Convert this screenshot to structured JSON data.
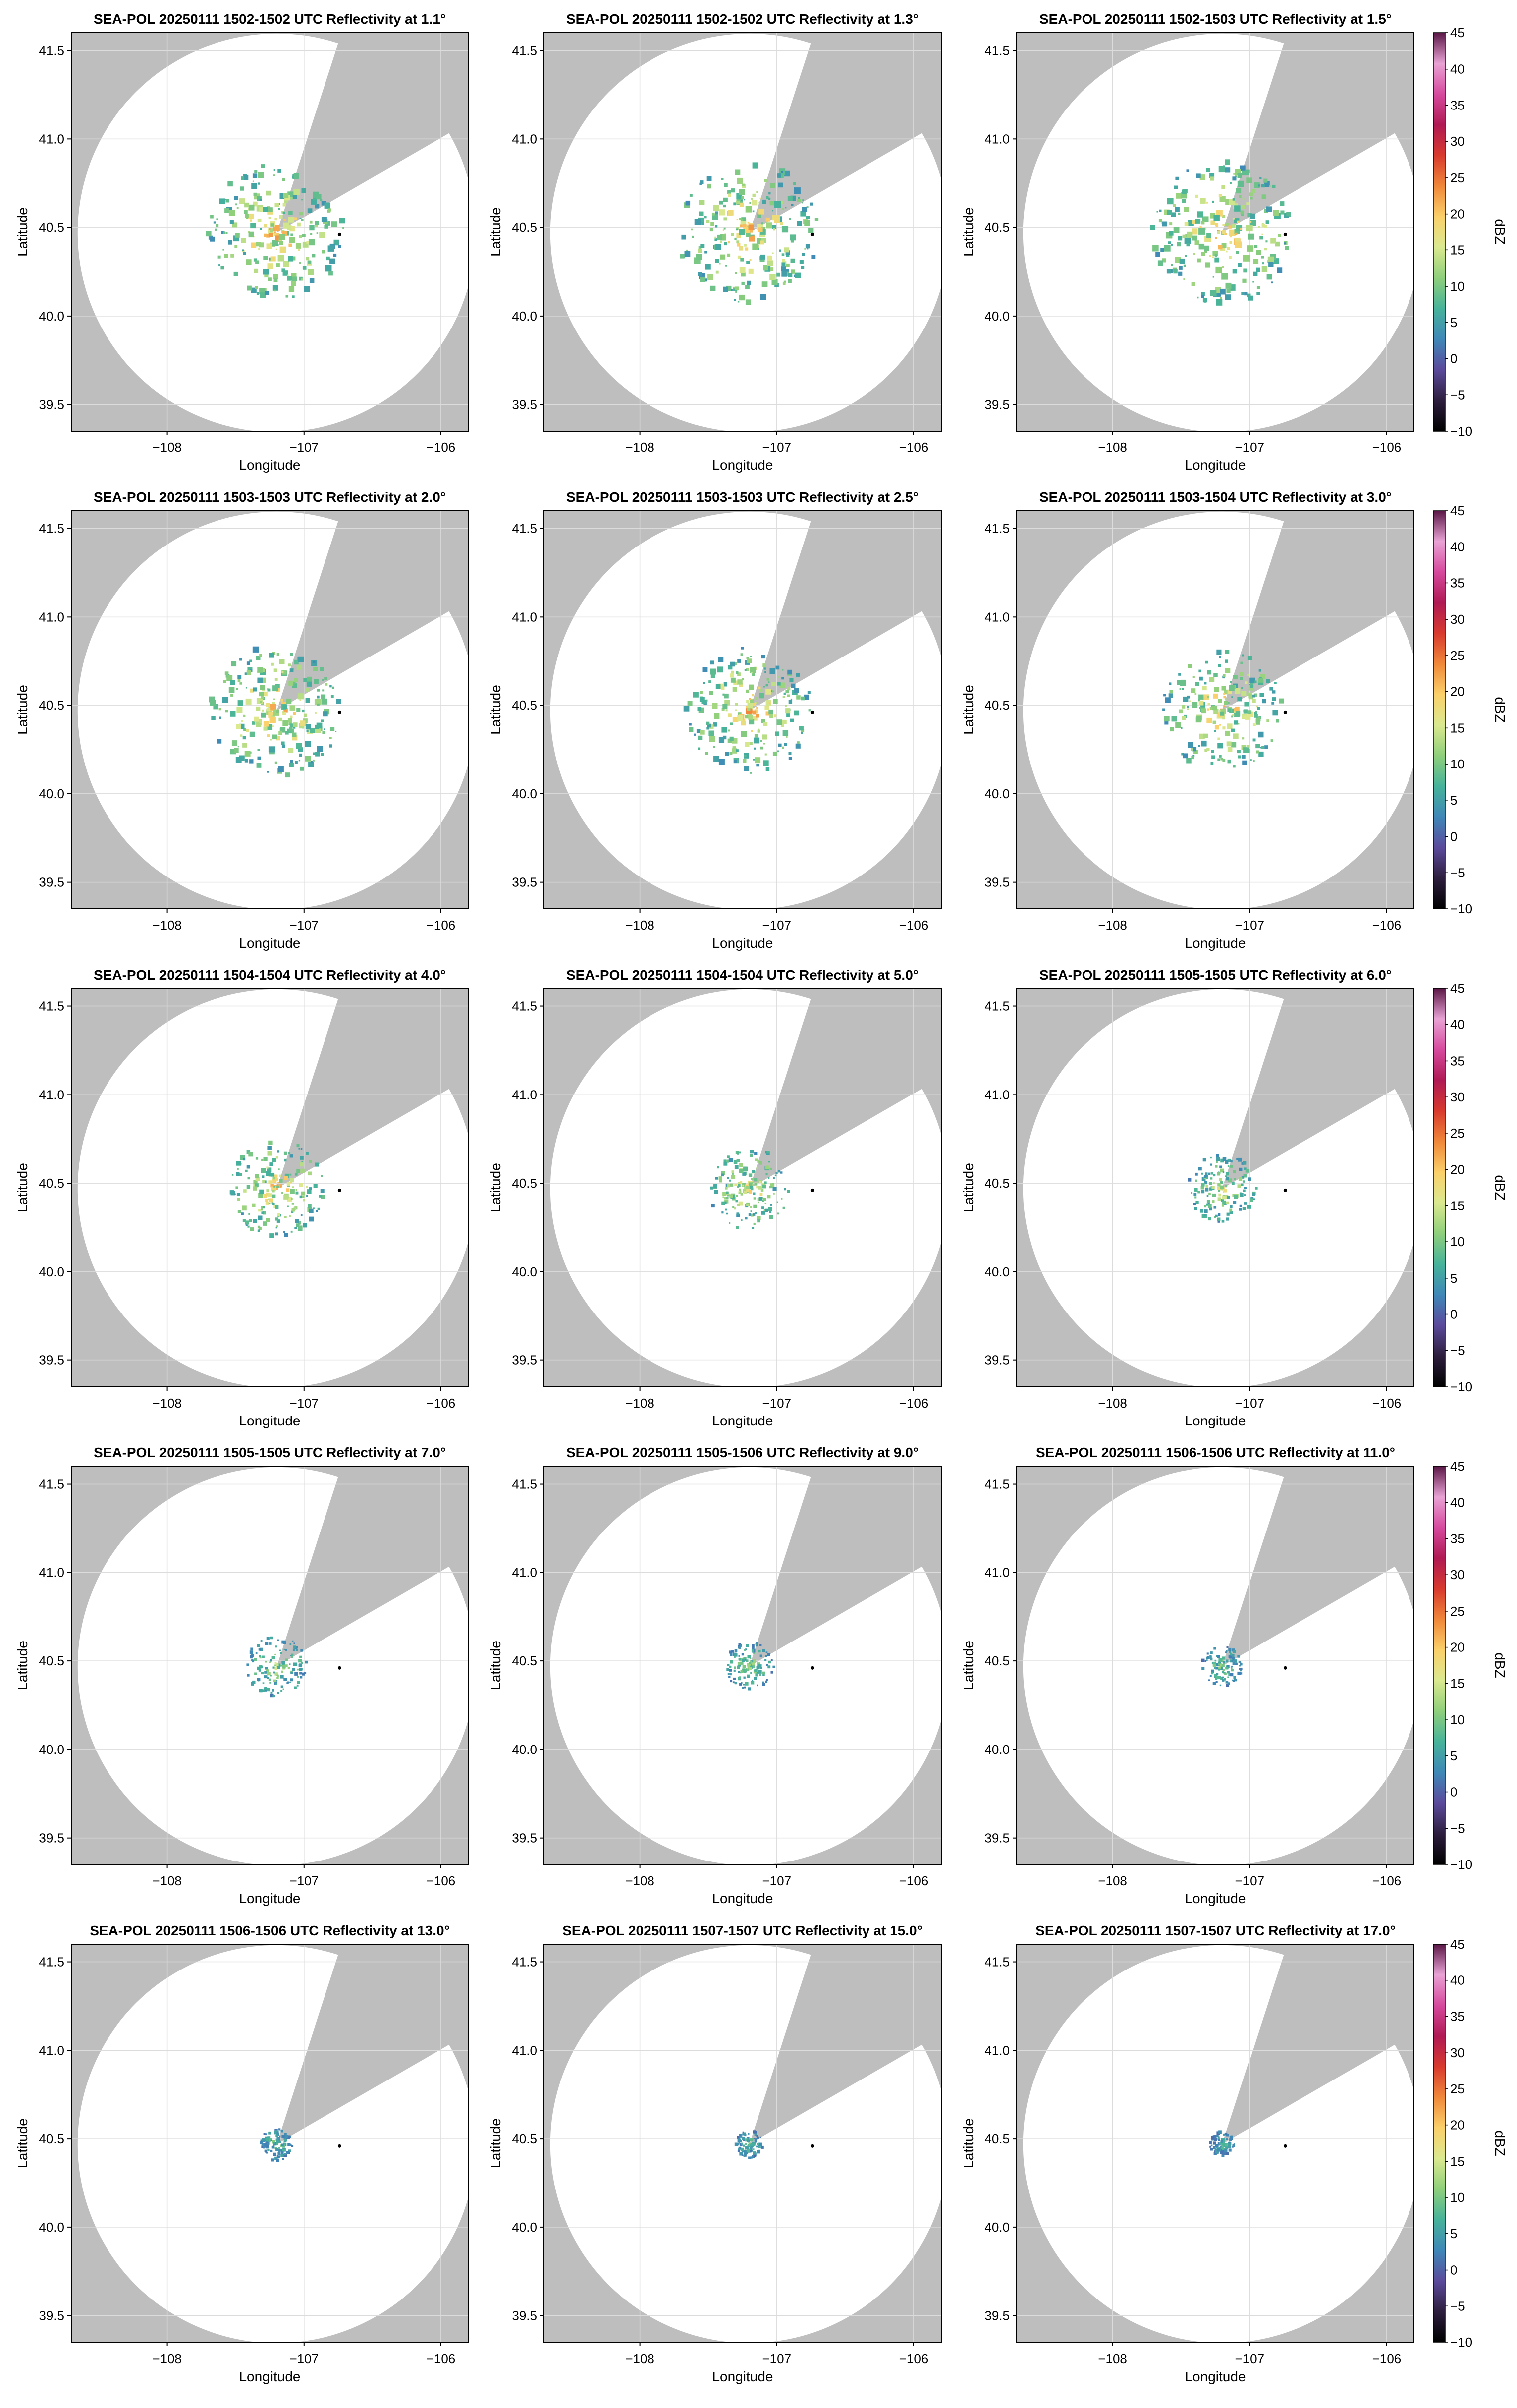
{
  "figure": {
    "xlabel": "Longitude",
    "ylabel": "Latitude",
    "xticks": [
      "−108",
      "−107",
      "−106"
    ],
    "yticks": [
      "39.5",
      "40.0",
      "40.5",
      "41.0",
      "41.5"
    ],
    "colorbar_label": "dBZ",
    "colorbar_ticks": [
      "45",
      "40",
      "35",
      "30",
      "25",
      "20",
      "15",
      "10",
      "5",
      "0",
      "−5",
      "−10"
    ],
    "colors": {
      "background_gray": "#bebebe",
      "coverage_white": "#ffffff",
      "grid": "#dcdcdc",
      "colormap": [
        "#000000",
        "#2d1e3e",
        "#5b4a9c",
        "#3f88b8",
        "#47b39a",
        "#8fcf7b",
        "#dbe98f",
        "#fbd06a",
        "#f0883a",
        "#d83a2e",
        "#b01a54",
        "#d64a9e",
        "#e9a2d4",
        "#5a1746"
      ]
    }
  },
  "chart_data": [
    {
      "type": "heatmap",
      "title": "SEA-POL 20250111 1502-1502 UTC Reflectivity at 1.1°",
      "elevation_deg": 1.1,
      "xlim": [
        -108.7,
        -105.8
      ],
      "ylim": [
        39.35,
        41.6
      ],
      "radar_lon": -107.2,
      "radar_lat": 40.47,
      "marker": {
        "lon": -106.74,
        "lat": 40.46
      },
      "echo_extent_deg": 0.5,
      "echo_max_dbz": 28
    },
    {
      "type": "heatmap",
      "title": "SEA-POL 20250111 1502-1502 UTC Reflectivity at 1.3°",
      "elevation_deg": 1.3,
      "xlim": [
        -108.7,
        -105.8
      ],
      "ylim": [
        39.35,
        41.6
      ],
      "radar_lon": -107.2,
      "radar_lat": 40.47,
      "marker": {
        "lon": -106.74,
        "lat": 40.46
      },
      "echo_extent_deg": 0.52,
      "echo_max_dbz": 28
    },
    {
      "type": "heatmap",
      "title": "SEA-POL 20250111 1502-1503 UTC Reflectivity at 1.5°",
      "elevation_deg": 1.5,
      "xlim": [
        -108.7,
        -105.8
      ],
      "ylim": [
        39.35,
        41.6
      ],
      "radar_lon": -107.2,
      "radar_lat": 40.47,
      "marker": {
        "lon": -106.74,
        "lat": 40.46
      },
      "echo_extent_deg": 0.52,
      "echo_max_dbz": 28,
      "colorbar": true
    },
    {
      "type": "heatmap",
      "title": "SEA-POL 20250111 1503-1503 UTC Reflectivity at 2.0°",
      "elevation_deg": 2.0,
      "xlim": [
        -108.7,
        -105.8
      ],
      "ylim": [
        39.35,
        41.6
      ],
      "radar_lon": -107.2,
      "radar_lat": 40.47,
      "marker": {
        "lon": -106.74,
        "lat": 40.46
      },
      "echo_extent_deg": 0.48,
      "echo_max_dbz": 28
    },
    {
      "type": "heatmap",
      "title": "SEA-POL 20250111 1503-1503 UTC Reflectivity at 2.5°",
      "elevation_deg": 2.5,
      "xlim": [
        -108.7,
        -105.8
      ],
      "ylim": [
        39.35,
        41.6
      ],
      "radar_lon": -107.2,
      "radar_lat": 40.47,
      "marker": {
        "lon": -106.74,
        "lat": 40.46
      },
      "echo_extent_deg": 0.46,
      "echo_max_dbz": 28
    },
    {
      "type": "heatmap",
      "title": "SEA-POL 20250111 1503-1504 UTC Reflectivity at 3.0°",
      "elevation_deg": 3.0,
      "xlim": [
        -108.7,
        -105.8
      ],
      "ylim": [
        39.35,
        41.6
      ],
      "radar_lon": -107.2,
      "radar_lat": 40.47,
      "marker": {
        "lon": -106.74,
        "lat": 40.46
      },
      "echo_extent_deg": 0.44,
      "echo_max_dbz": 28,
      "colorbar": true
    },
    {
      "type": "heatmap",
      "title": "SEA-POL 20250111 1504-1504 UTC Reflectivity at 4.0°",
      "elevation_deg": 4.0,
      "xlim": [
        -108.7,
        -105.8
      ],
      "ylim": [
        39.35,
        41.6
      ],
      "radar_lon": -107.2,
      "radar_lat": 40.47,
      "marker": {
        "lon": -106.74,
        "lat": 40.46
      },
      "echo_extent_deg": 0.35,
      "echo_max_dbz": 28
    },
    {
      "type": "heatmap",
      "title": "SEA-POL 20250111 1504-1504 UTC Reflectivity at 5.0°",
      "elevation_deg": 5.0,
      "xlim": [
        -108.7,
        -105.8
      ],
      "ylim": [
        39.35,
        41.6
      ],
      "radar_lon": -107.2,
      "radar_lat": 40.47,
      "marker": {
        "lon": -106.74,
        "lat": 40.46
      },
      "echo_extent_deg": 0.3,
      "echo_max_dbz": 25
    },
    {
      "type": "heatmap",
      "title": "SEA-POL 20250111 1505-1505 UTC Reflectivity at 6.0°",
      "elevation_deg": 6.0,
      "xlim": [
        -108.7,
        -105.8
      ],
      "ylim": [
        39.35,
        41.6
      ],
      "radar_lon": -107.2,
      "radar_lat": 40.47,
      "marker": {
        "lon": -106.74,
        "lat": 40.46
      },
      "echo_extent_deg": 0.25,
      "echo_max_dbz": 22,
      "colorbar": true
    },
    {
      "type": "heatmap",
      "title": "SEA-POL 20250111 1505-1505 UTC Reflectivity at 7.0°",
      "elevation_deg": 7.0,
      "xlim": [
        -108.7,
        -105.8
      ],
      "ylim": [
        39.35,
        41.6
      ],
      "radar_lon": -107.2,
      "radar_lat": 40.47,
      "marker": {
        "lon": -106.74,
        "lat": 40.46
      },
      "echo_extent_deg": 0.22,
      "echo_max_dbz": 20
    },
    {
      "type": "heatmap",
      "title": "SEA-POL 20250111 1505-1506 UTC Reflectivity at 9.0°",
      "elevation_deg": 9.0,
      "xlim": [
        -108.7,
        -105.8
      ],
      "ylim": [
        39.35,
        41.6
      ],
      "radar_lon": -107.2,
      "radar_lat": 40.47,
      "marker": {
        "lon": -106.74,
        "lat": 40.46
      },
      "echo_extent_deg": 0.18,
      "echo_max_dbz": 18
    },
    {
      "type": "heatmap",
      "title": "SEA-POL 20250111 1506-1506 UTC Reflectivity at 11.0°",
      "elevation_deg": 11.0,
      "xlim": [
        -108.7,
        -105.8
      ],
      "ylim": [
        39.35,
        41.6
      ],
      "radar_lon": -107.2,
      "radar_lat": 40.47,
      "marker": {
        "lon": -106.74,
        "lat": 40.46
      },
      "echo_extent_deg": 0.15,
      "echo_max_dbz": 16,
      "colorbar": true
    },
    {
      "type": "heatmap",
      "title": "SEA-POL 20250111 1506-1506 UTC Reflectivity at 13.0°",
      "elevation_deg": 13.0,
      "xlim": [
        -108.7,
        -105.8
      ],
      "ylim": [
        39.35,
        41.6
      ],
      "radar_lon": -107.2,
      "radar_lat": 40.47,
      "marker": {
        "lon": -106.74,
        "lat": 40.46
      },
      "echo_extent_deg": 0.12,
      "echo_max_dbz": 15
    },
    {
      "type": "heatmap",
      "title": "SEA-POL 20250111 1507-1507 UTC Reflectivity at 15.0°",
      "elevation_deg": 15.0,
      "xlim": [
        -108.7,
        -105.8
      ],
      "ylim": [
        39.35,
        41.6
      ],
      "radar_lon": -107.2,
      "radar_lat": 40.47,
      "marker": {
        "lon": -106.74,
        "lat": 40.46
      },
      "echo_extent_deg": 0.1,
      "echo_max_dbz": 14
    },
    {
      "type": "heatmap",
      "title": "SEA-POL 20250111 1507-1507 UTC Reflectivity at 17.0°",
      "elevation_deg": 17.0,
      "xlim": [
        -108.7,
        -105.8
      ],
      "ylim": [
        39.35,
        41.6
      ],
      "radar_lon": -107.2,
      "radar_lat": 40.47,
      "marker": {
        "lon": -106.74,
        "lat": 40.46
      },
      "echo_extent_deg": 0.09,
      "echo_max_dbz": 13,
      "colorbar": true
    }
  ]
}
